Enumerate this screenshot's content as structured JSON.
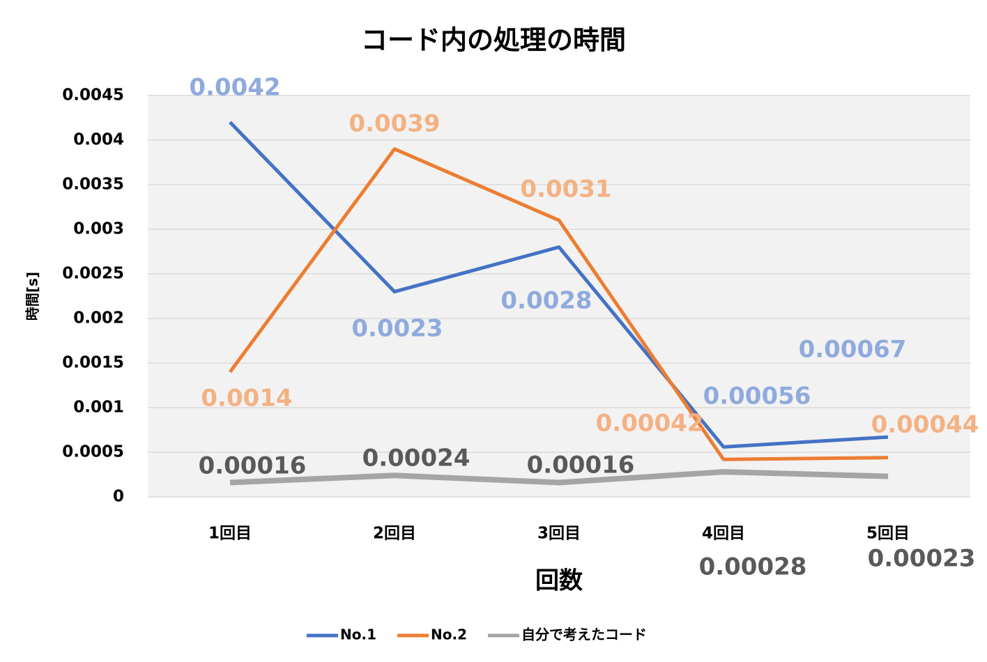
{
  "chart_data": {
    "type": "line",
    "title": "コード内の処理の時間",
    "x_label": "回数",
    "y_label": "時間[s]",
    "categories": [
      "1回目",
      "2回目",
      "3回目",
      "4回目",
      "5回目"
    ],
    "series": [
      {
        "name": "No.1",
        "color": "#4472c4",
        "label_color": "#8faadc",
        "values": [
          0.0042,
          0.0023,
          0.0028,
          0.00056,
          0.00067
        ]
      },
      {
        "name": "No.2",
        "color": "#ed7d31",
        "label_color": "#f4b183",
        "values": [
          0.0014,
          0.0039,
          0.0031,
          0.00042,
          0.00044
        ]
      },
      {
        "name": "自分で考えたコード",
        "color": "#a5a5a5",
        "label_color": "#595959",
        "values": [
          0.00016,
          0.00024,
          0.00016,
          0.00028,
          0.00023
        ]
      }
    ],
    "ylim": [
      0,
      0.0045
    ],
    "yticks": [
      0,
      0.0005,
      0.001,
      0.0015,
      0.002,
      0.0025,
      0.003,
      0.0035,
      0.004,
      0.0045
    ],
    "grid": true,
    "legend": "bottom"
  }
}
